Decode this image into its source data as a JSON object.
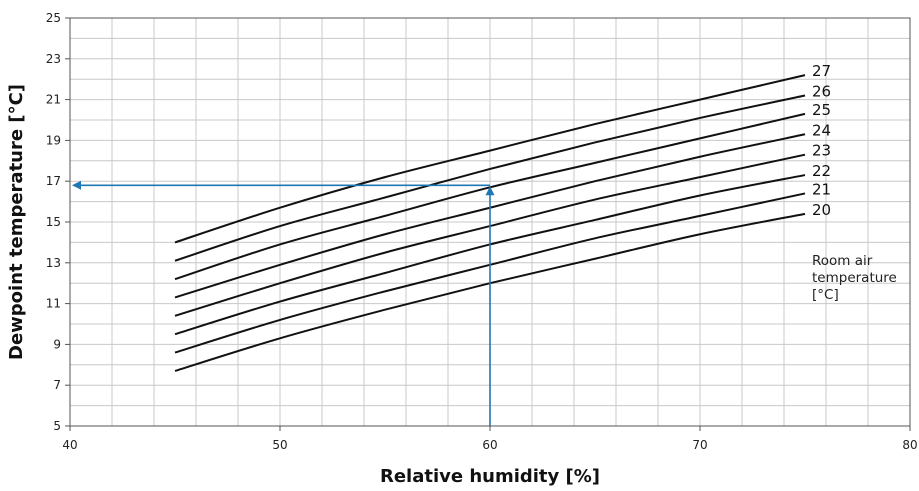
{
  "chart_data": {
    "type": "line",
    "xlabel": "Relative humidity [%]",
    "ylabel": "Dewpoint temperature  [°C]",
    "xlim": [
      40,
      80
    ],
    "ylim": [
      5,
      25
    ],
    "x_ticks": [
      "40",
      "50",
      "60",
      "70",
      "80"
    ],
    "y_ticks": [
      "5",
      "7",
      "9",
      "11",
      "13",
      "15",
      "17",
      "19",
      "21",
      "23",
      "25"
    ],
    "grid": true,
    "legend_note": [
      "Room air",
      "temperature",
      "[°C]"
    ],
    "x": [
      45,
      50,
      55,
      60,
      65,
      70,
      75
    ],
    "series": [
      {
        "name": "27",
        "values": [
          14.0,
          15.7,
          17.2,
          18.5,
          19.8,
          21.0,
          22.2
        ]
      },
      {
        "name": "26",
        "values": [
          13.1,
          14.8,
          16.2,
          17.6,
          18.9,
          20.1,
          21.2
        ]
      },
      {
        "name": "25",
        "values": [
          12.2,
          13.9,
          15.3,
          16.7,
          17.9,
          19.1,
          20.3
        ]
      },
      {
        "name": "24",
        "values": [
          11.3,
          12.9,
          14.4,
          15.7,
          17.0,
          18.2,
          19.3
        ]
      },
      {
        "name": "23",
        "values": [
          10.4,
          12.0,
          13.5,
          14.8,
          16.1,
          17.2,
          18.3
        ]
      },
      {
        "name": "22",
        "values": [
          9.5,
          11.1,
          12.5,
          13.9,
          15.1,
          16.3,
          17.3
        ]
      },
      {
        "name": "21",
        "values": [
          8.6,
          10.2,
          11.6,
          12.9,
          14.2,
          15.3,
          16.4
        ]
      },
      {
        "name": "20",
        "values": [
          7.7,
          9.3,
          10.7,
          12.0,
          13.2,
          14.4,
          15.4
        ]
      }
    ],
    "annotation": {
      "rh": 60,
      "dewpoint": 16.8
    },
    "colors": {
      "lines": "#111111",
      "grid": "#c8c8c8",
      "arrow": "#1f78b4"
    }
  }
}
